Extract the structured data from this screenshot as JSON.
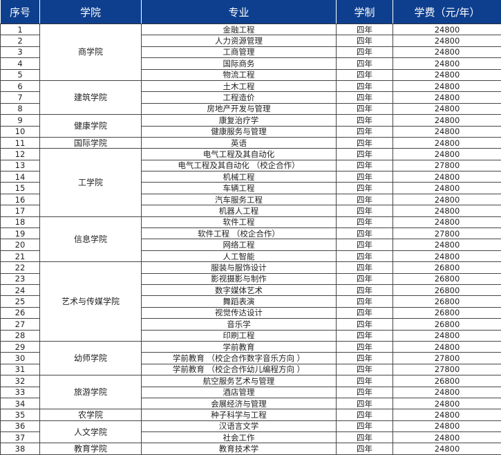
{
  "headers": [
    "序号",
    "学院",
    "专业",
    "学制",
    "学费（元/年）"
  ],
  "colleges": [
    {
      "name": "商学院",
      "majors": [
        [
          "1",
          "金融工程",
          "四年",
          "24800"
        ],
        [
          "2",
          "人力资源管理",
          "四年",
          "24800"
        ],
        [
          "3",
          "工商管理",
          "四年",
          "24800"
        ],
        [
          "4",
          "国际商务",
          "四年",
          "24800"
        ],
        [
          "5",
          "物流工程",
          "四年",
          "24800"
        ]
      ]
    },
    {
      "name": "建筑学院",
      "majors": [
        [
          "6",
          "土木工程",
          "四年",
          "24800"
        ],
        [
          "7",
          "工程造价",
          "四年",
          "24800"
        ],
        [
          "8",
          "房地产开发与管理",
          "四年",
          "24800"
        ]
      ]
    },
    {
      "name": "健康学院",
      "majors": [
        [
          "9",
          "康复治疗学",
          "四年",
          "24800"
        ],
        [
          "10",
          "健康服务与管理",
          "四年",
          "24800"
        ]
      ]
    },
    {
      "name": "国际学院",
      "majors": [
        [
          "11",
          "英语",
          "四年",
          "24800"
        ]
      ]
    },
    {
      "name": "工学院",
      "majors": [
        [
          "12",
          "电气工程及其自动化",
          "四年",
          "24800"
        ],
        [
          "13",
          "电气工程及其自动化 （校企合作）",
          "四年",
          "27800"
        ],
        [
          "14",
          "机械工程",
          "四年",
          "24800"
        ],
        [
          "15",
          "车辆工程",
          "四年",
          "24800"
        ],
        [
          "16",
          "汽车服务工程",
          "四年",
          "24800"
        ],
        [
          "17",
          "机器人工程",
          "四年",
          "24800"
        ]
      ]
    },
    {
      "name": "信息学院",
      "majors": [
        [
          "18",
          "软件工程",
          "四年",
          "24800"
        ],
        [
          "19",
          "软件工程 （校企合作）",
          "四年",
          "27800"
        ],
        [
          "20",
          "网络工程",
          "四年",
          "24800"
        ],
        [
          "21",
          "人工智能",
          "四年",
          "24800"
        ]
      ]
    },
    {
      "name": "艺术与传媒学院",
      "majors": [
        [
          "22",
          "服装与服饰设计",
          "四年",
          "26800"
        ],
        [
          "23",
          "影视摄影与制作",
          "四年",
          "26800"
        ],
        [
          "24",
          "数字媒体艺术",
          "四年",
          "26800"
        ],
        [
          "25",
          "舞蹈表演",
          "四年",
          "26800"
        ],
        [
          "26",
          "视觉传达设计",
          "四年",
          "26800"
        ],
        [
          "27",
          "音乐学",
          "四年",
          "26800"
        ],
        [
          "28",
          "印刷工程",
          "四年",
          "24800"
        ]
      ]
    },
    {
      "name": "幼师学院",
      "majors": [
        [
          "29",
          "学前教育",
          "四年",
          "24800"
        ],
        [
          "30",
          "学前教育 （校企合作数字音乐方向 ）",
          "四年",
          "27800"
        ],
        [
          "31",
          "学前教育 （校企合作幼儿编程方向 ）",
          "四年",
          "27800"
        ]
      ]
    },
    {
      "name": "旅游学院",
      "majors": [
        [
          "32",
          "航空服务艺术与管理",
          "四年",
          "26800"
        ],
        [
          "33",
          "酒店管理",
          "四年",
          "24800"
        ],
        [
          "34",
          "会展经济与管理",
          "四年",
          "24800"
        ]
      ]
    },
    {
      "name": "农学院",
      "majors": [
        [
          "35",
          "种子科学与工程",
          "四年",
          "24800"
        ]
      ]
    },
    {
      "name": "人文学院",
      "majors": [
        [
          "36",
          "汉语言文学",
          "四年",
          "24800"
        ],
        [
          "37",
          "社会工作",
          "四年",
          "24800"
        ]
      ]
    },
    {
      "name": "教育学院",
      "majors": [
        [
          "38",
          "教育技术学",
          "四年",
          "24800"
        ]
      ]
    }
  ]
}
